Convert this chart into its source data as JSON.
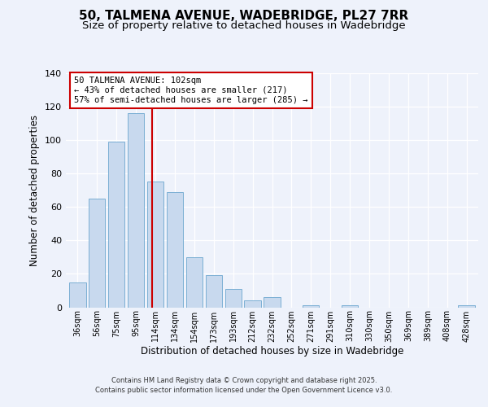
{
  "title": "50, TALMENA AVENUE, WADEBRIDGE, PL27 7RR",
  "subtitle": "Size of property relative to detached houses in Wadebridge",
  "xlabel": "Distribution of detached houses by size in Wadebridge",
  "ylabel": "Number of detached properties",
  "bar_labels": [
    "36sqm",
    "56sqm",
    "75sqm",
    "95sqm",
    "114sqm",
    "134sqm",
    "154sqm",
    "173sqm",
    "193sqm",
    "212sqm",
    "232sqm",
    "252sqm",
    "271sqm",
    "291sqm",
    "310sqm",
    "330sqm",
    "350sqm",
    "369sqm",
    "389sqm",
    "408sqm",
    "428sqm"
  ],
  "bar_values": [
    15,
    65,
    99,
    116,
    75,
    69,
    30,
    19,
    11,
    4,
    6,
    0,
    1,
    0,
    1,
    0,
    0,
    0,
    0,
    0,
    1
  ],
  "bar_color": "#c8d9ee",
  "bar_edge_color": "#7bafd4",
  "vline_x": 3.82,
  "vline_color": "#cc0000",
  "annotation_text": "50 TALMENA AVENUE: 102sqm\n← 43% of detached houses are smaller (217)\n57% of semi-detached houses are larger (285) →",
  "annotation_box_color": "#ffffff",
  "annotation_box_edge": "#cc0000",
  "ylim": [
    0,
    140
  ],
  "yticks": [
    0,
    20,
    40,
    60,
    80,
    100,
    120,
    140
  ],
  "bg_color": "#eef2fb",
  "title_fontsize": 11,
  "subtitle_fontsize": 9.5,
  "footer_line1": "Contains HM Land Registry data © Crown copyright and database right 2025.",
  "footer_line2": "Contains public sector information licensed under the Open Government Licence v3.0."
}
